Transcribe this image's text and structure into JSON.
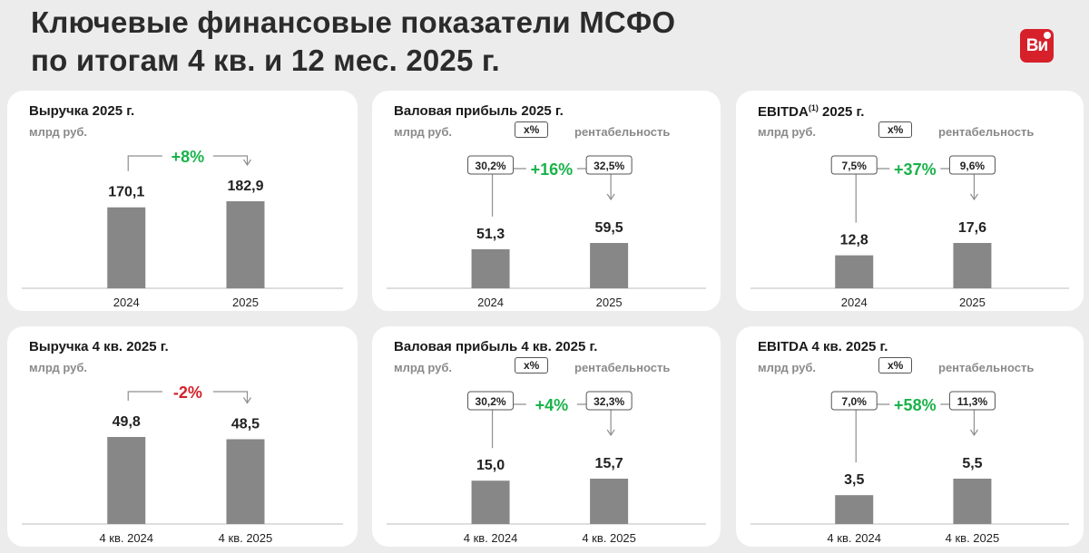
{
  "page": {
    "title_line1": "Ключевые финансовые показатели МСФО",
    "title_line2": "по итогам 4 кв. и 12 мес. 2025 г.",
    "logo": "Ви"
  },
  "colors": {
    "bar": "#878787",
    "growth": "#19b24a",
    "decline": "#d6202a",
    "axis": "#bdbdbd",
    "connector": "#8f8f8f"
  },
  "chart_data": [
    {
      "id": "p1",
      "type": "bar",
      "title": "Выручка 2025 г.",
      "sup": "",
      "unit": "млрд руб.",
      "categories": [
        "2024",
        "2025"
      ],
      "values": [
        170.1,
        182.9
      ],
      "value_labels": [
        "170,1",
        "182,9"
      ],
      "change": "+8%",
      "change_dir": "up",
      "margins": null,
      "margin_label": "",
      "margin_box": ""
    },
    {
      "id": "p2",
      "type": "bar",
      "title": "Валовая прибыль 2025 г.",
      "sup": "",
      "unit": "млрд руб.",
      "categories": [
        "2024",
        "2025"
      ],
      "values": [
        51.3,
        59.5
      ],
      "value_labels": [
        "51,3",
        "59,5"
      ],
      "change": "+16%",
      "change_dir": "up",
      "margins": [
        "30,2%",
        "32,5%"
      ],
      "margin_label": "рентабельность",
      "margin_box": "x%"
    },
    {
      "id": "p3",
      "type": "bar",
      "title": "EBITDA",
      "sup": "(1)",
      "title_suffix": " 2025 г.",
      "unit": "млрд руб.",
      "categories": [
        "2024",
        "2025"
      ],
      "values": [
        12.8,
        17.6
      ],
      "value_labels": [
        "12,8",
        "17,6"
      ],
      "change": "+37%",
      "change_dir": "up",
      "margins": [
        "7,5%",
        "9,6%"
      ],
      "margin_label": "рентабельность",
      "margin_box": "x%"
    },
    {
      "id": "p4",
      "type": "bar",
      "title": "Выручка 4 кв. 2025 г.",
      "sup": "",
      "unit": "млрд руб.",
      "categories": [
        "4 кв. 2024",
        "4 кв. 2025"
      ],
      "values": [
        49.8,
        48.5
      ],
      "value_labels": [
        "49,8",
        "48,5"
      ],
      "change": "-2%",
      "change_dir": "down",
      "margins": null,
      "margin_label": "",
      "margin_box": ""
    },
    {
      "id": "p5",
      "type": "bar",
      "title": "Валовая прибыль 4 кв. 2025 г.",
      "sup": "",
      "unit": "млрд руб.",
      "categories": [
        "4 кв. 2024",
        "4 кв. 2025"
      ],
      "values": [
        15.0,
        15.7
      ],
      "value_labels": [
        "15,0",
        "15,7"
      ],
      "change": "+4%",
      "change_dir": "up",
      "margins": [
        "30,2%",
        "32,3%"
      ],
      "margin_label": "рентабельность",
      "margin_box": "x%"
    },
    {
      "id": "p6",
      "type": "bar",
      "title": "EBITDA 4 кв. 2025 г.",
      "sup": "",
      "unit": "млрд руб.",
      "categories": [
        "4 кв. 2024",
        "4 кв. 2025"
      ],
      "values": [
        3.5,
        5.5
      ],
      "value_labels": [
        "3,5",
        "5,5"
      ],
      "change": "+58%",
      "change_dir": "up",
      "margins": [
        "7,0%",
        "11,3%"
      ],
      "margin_label": "рентабельность",
      "margin_box": "x%"
    }
  ]
}
